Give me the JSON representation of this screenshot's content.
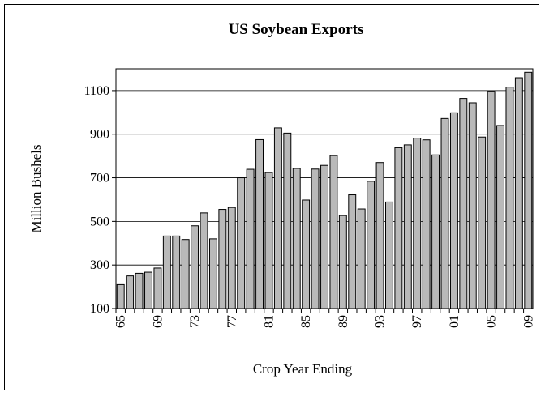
{
  "chart_data": {
    "type": "bar",
    "title": "US Soybean Exports",
    "xlabel": "Crop Year Ending",
    "ylabel": "Million Bushels",
    "ylim": [
      100,
      1200
    ],
    "yticks": [
      100,
      300,
      500,
      700,
      900,
      1100
    ],
    "grid": true,
    "legend": "none",
    "bar_color": "#b9b9b9",
    "categories": [
      "65",
      "66",
      "67",
      "68",
      "69",
      "70",
      "71",
      "72",
      "73",
      "74",
      "75",
      "76",
      "77",
      "78",
      "79",
      "80",
      "81",
      "82",
      "83",
      "84",
      "85",
      "86",
      "87",
      "88",
      "89",
      "90",
      "91",
      "92",
      "93",
      "94",
      "95",
      "96",
      "97",
      "98",
      "99",
      "00",
      "01",
      "02",
      "03",
      "04",
      "05",
      "06",
      "07",
      "08",
      "09"
    ],
    "xtick_labels": [
      "65",
      "69",
      "73",
      "77",
      "81",
      "85",
      "89",
      "93",
      "97",
      "01",
      "05",
      "09"
    ],
    "values": [
      210,
      250,
      262,
      267,
      286,
      433,
      433,
      417,
      480,
      539,
      420,
      555,
      564,
      700,
      739,
      875,
      724,
      929,
      905,
      743,
      598,
      740,
      757,
      802,
      527,
      622,
      557,
      684,
      770,
      589,
      838,
      851,
      882,
      874,
      805,
      972,
      998,
      1064,
      1044,
      887,
      1097,
      940,
      1116,
      1159,
      1184
    ]
  }
}
